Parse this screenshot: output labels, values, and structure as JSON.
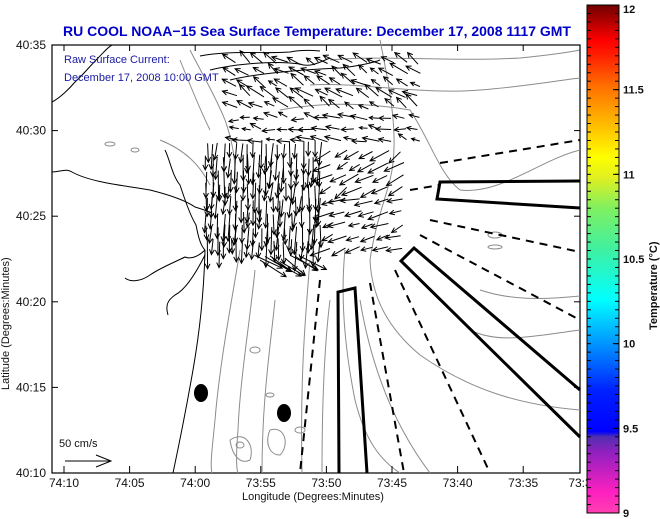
{
  "title": "RU COOL  NOAA−15  Sea Surface Temperature:  December 17, 2008 1117 GMT",
  "subtitle_line1": "Raw Surface Current:",
  "subtitle_line2": "December 17, 2008 10:00 GMT",
  "axes": {
    "xlabel": "Longitude (Degrees:Minutes)",
    "ylabel": "Latitude (Degrees:Minutes)",
    "x_ticks": [
      "74:10",
      "74:05",
      "74:00",
      "73:55",
      "73:50",
      "73:45",
      "73:40",
      "73:35",
      "73:3"
    ],
    "y_ticks": [
      "40:35",
      "40:30",
      "40:25",
      "40:20",
      "40:15",
      "40:10"
    ]
  },
  "scale_label": "50 cm/s",
  "colorbar": {
    "label": "Temperature (°C)",
    "ticks": [
      "12",
      "11.5",
      "11",
      "10.5",
      "10",
      "9.5",
      "9"
    ],
    "range": [
      9,
      12
    ],
    "colors": {
      "top": "#6e0000",
      "red": "#ff0000",
      "orange": "#ff8c00",
      "yellow": "#ffff00",
      "green": "#50f080",
      "cyan": "#00ffff",
      "blue": "#0000ff",
      "purple": "#7030c0",
      "magenta": "#ff20c0"
    }
  },
  "colors": {
    "title": "#0000c8",
    "coast": "#000000",
    "bathymetry": "#8c8c8c",
    "vector": "#000000"
  }
}
